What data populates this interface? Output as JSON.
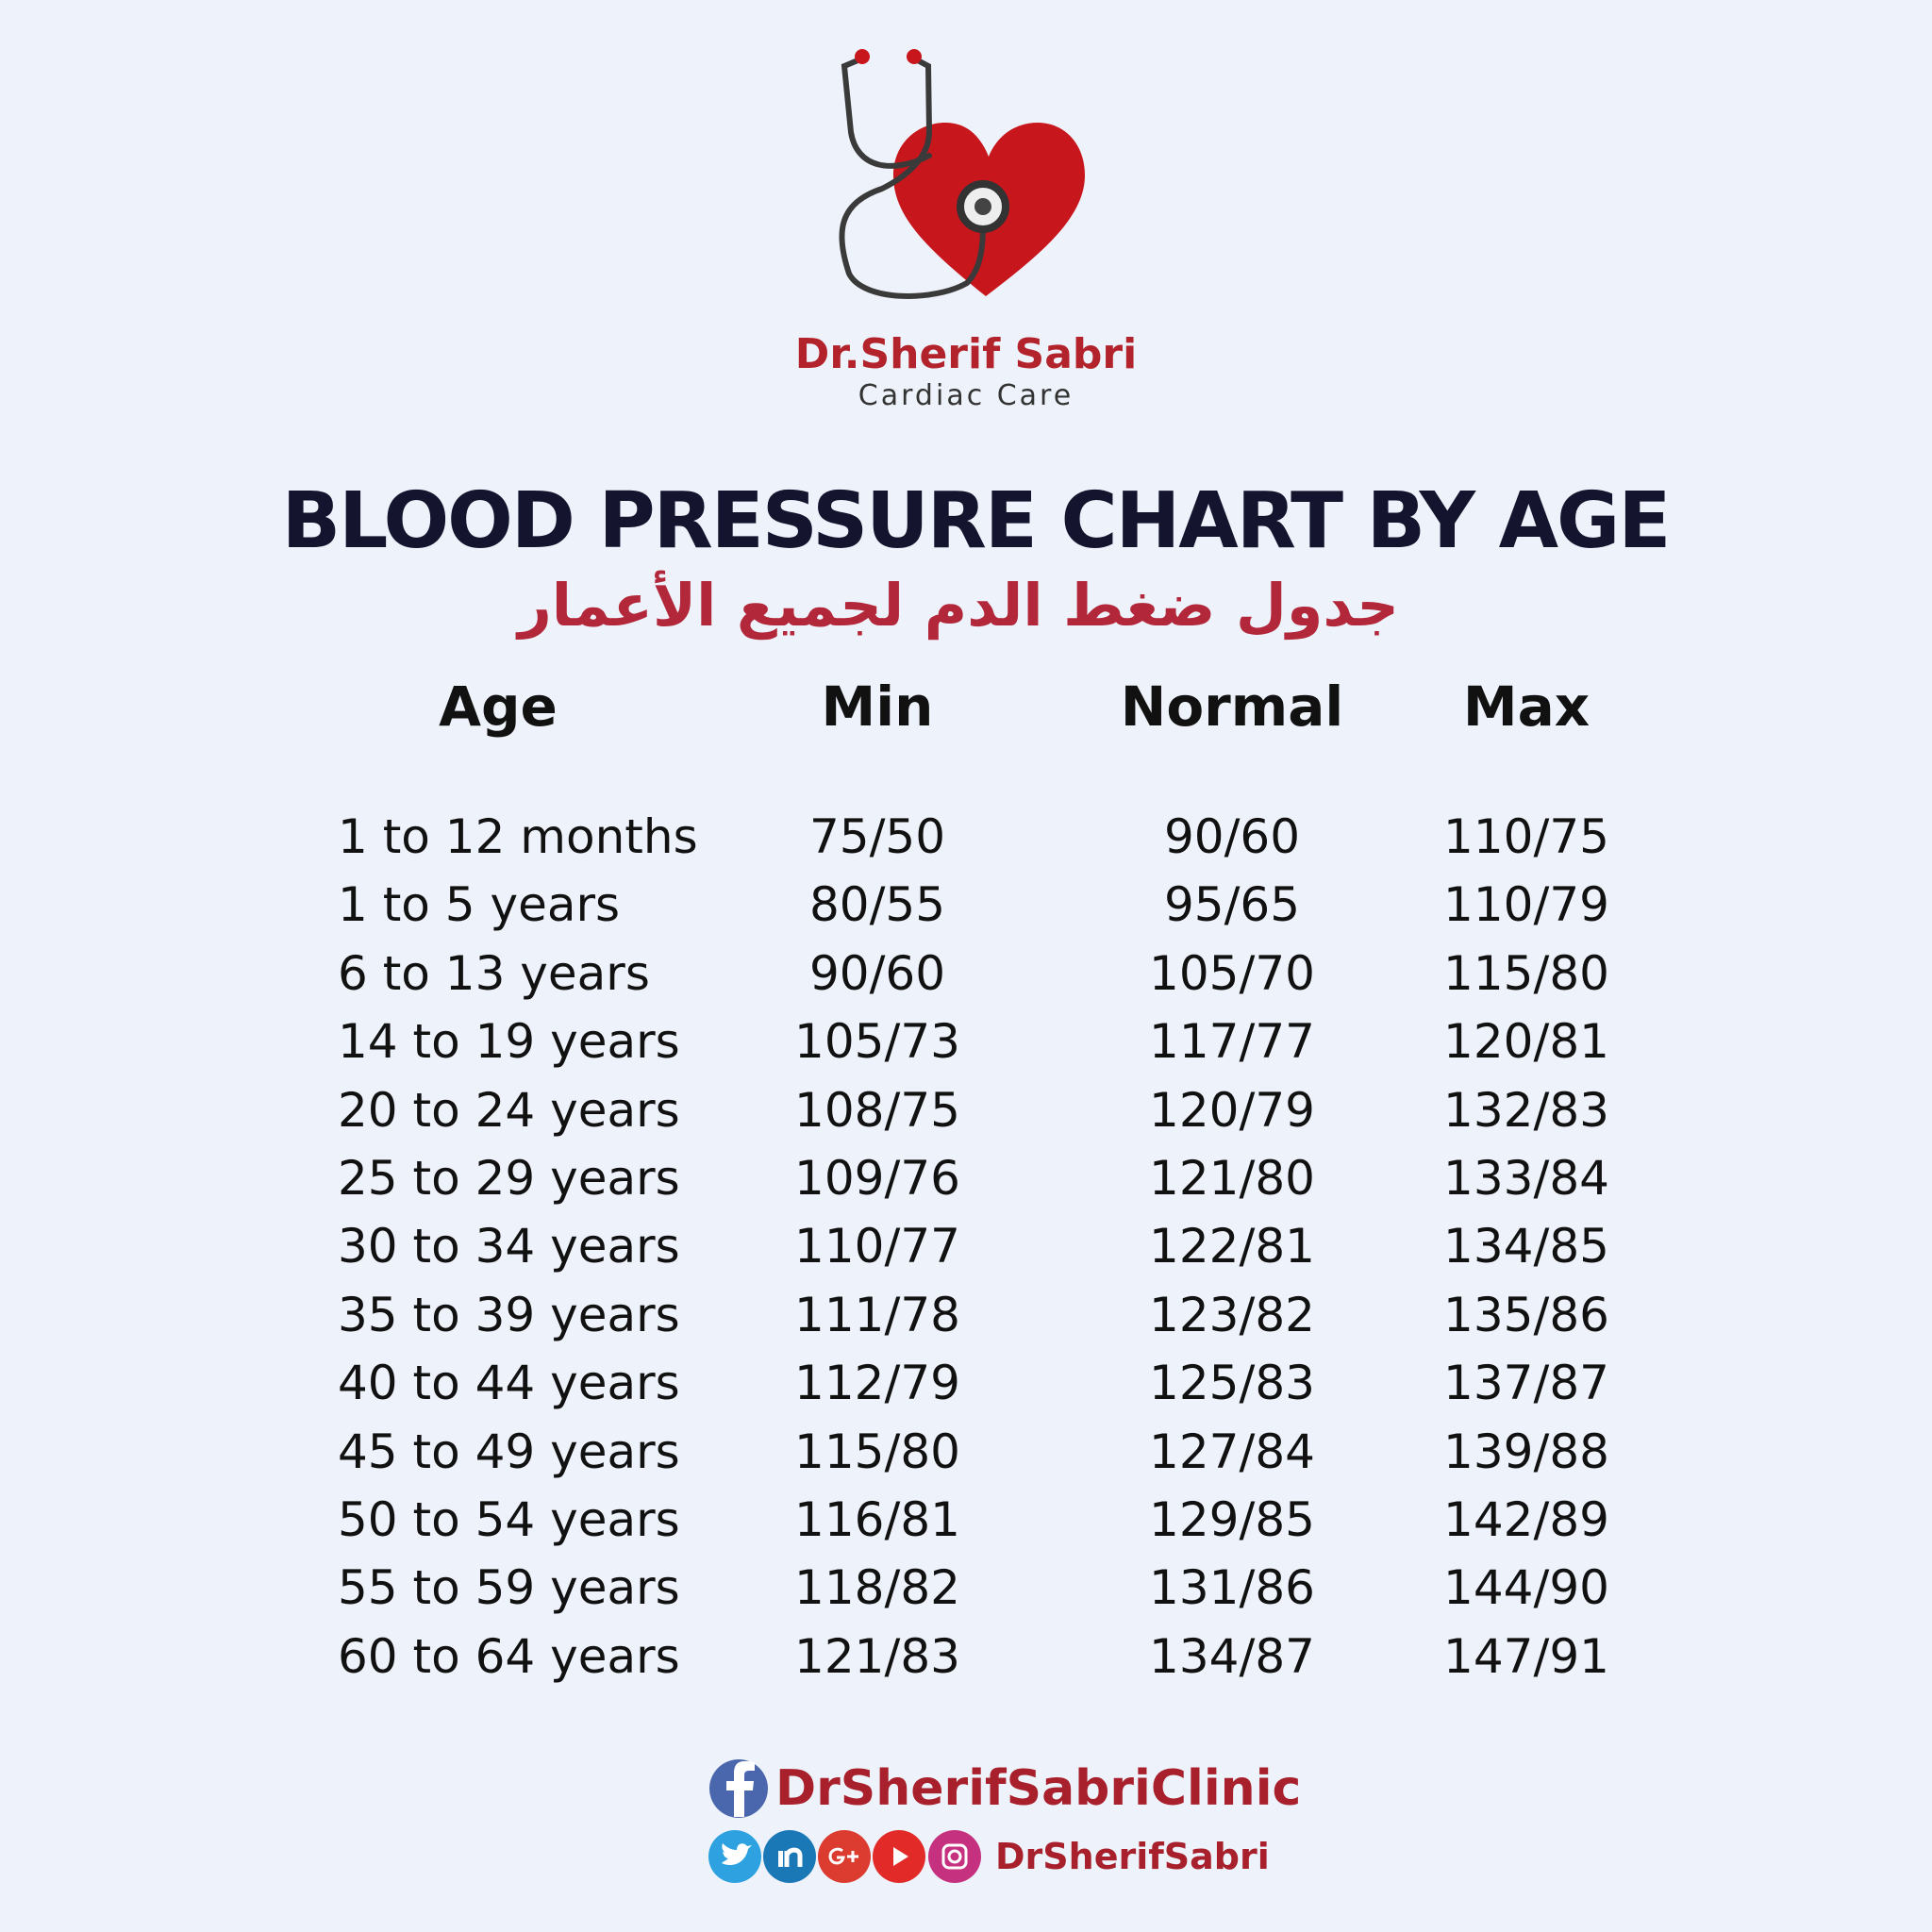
{
  "header": {
    "name": "Dr.Sherif Sabri",
    "tagline": "Cardiac Care"
  },
  "title": "BLOOD PRESSURE CHART BY AGE",
  "subtitle": "جدول ضغط الدم لجميع الأعمار",
  "table": {
    "columns": [
      "Age",
      "Min",
      "Normal",
      "Max"
    ],
    "rows": [
      [
        "1 to 12 months",
        "75/50",
        "90/60",
        "110/75"
      ],
      [
        "1 to 5 years",
        "80/55",
        "95/65",
        "110/79"
      ],
      [
        "6 to 13 years",
        "90/60",
        "105/70",
        "115/80"
      ],
      [
        "14 to 19 years",
        "105/73",
        "117/77",
        "120/81"
      ],
      [
        "20 to 24 years",
        "108/75",
        "120/79",
        "132/83"
      ],
      [
        "25 to 29 years",
        "109/76",
        "121/80",
        "133/84"
      ],
      [
        "30 to 34 years",
        "110/77",
        "122/81",
        "134/85"
      ],
      [
        "35 to 39 years",
        "111/78",
        "123/82",
        "135/86"
      ],
      [
        "40 to 44 years",
        "112/79",
        "125/83",
        "137/87"
      ],
      [
        "45 to 49 years",
        "115/80",
        "127/84",
        "139/88"
      ],
      [
        "50 to 54 years",
        "116/81",
        "129/85",
        "142/89"
      ],
      [
        "55 to 59 years",
        "118/82",
        "131/86",
        "144/90"
      ],
      [
        "60 to 64 years",
        "121/83",
        "134/87",
        "147/91"
      ]
    ]
  },
  "footer": {
    "facebook": "DrSherifSabriClinic",
    "handle": "DrSherifSabri"
  }
}
